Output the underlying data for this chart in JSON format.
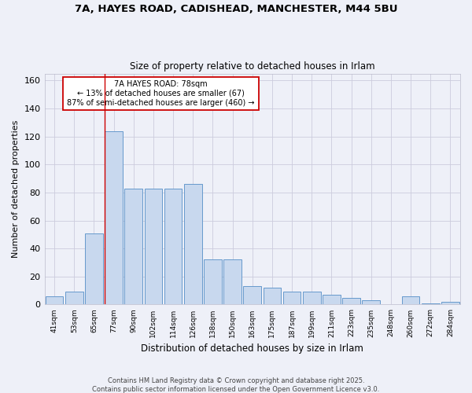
{
  "title1": "7A, HAYES ROAD, CADISHEAD, MANCHESTER, M44 5BU",
  "title2": "Size of property relative to detached houses in Irlam",
  "xlabel": "Distribution of detached houses by size in Irlam",
  "ylabel": "Number of detached properties",
  "categories": [
    "41sqm",
    "53sqm",
    "65sqm",
    "77sqm",
    "90sqm",
    "102sqm",
    "114sqm",
    "126sqm",
    "138sqm",
    "150sqm",
    "163sqm",
    "175sqm",
    "187sqm",
    "199sqm",
    "211sqm",
    "223sqm",
    "235sqm",
    "248sqm",
    "260sqm",
    "272sqm",
    "284sqm"
  ],
  "values": [
    6,
    9,
    51,
    124,
    83,
    83,
    83,
    86,
    32,
    32,
    13,
    12,
    9,
    9,
    7,
    5,
    3,
    0,
    6,
    1,
    2
  ],
  "bar_color": "#c8d8ee",
  "bar_edge_color": "#6699cc",
  "background_color": "#eef0f8",
  "grid_color": "#ccccdd",
  "annotation_box_color": "#ffffff",
  "annotation_border_color": "#cc0000",
  "red_line_index": 3,
  "annotation_text_line1": "7A HAYES ROAD: 78sqm",
  "annotation_text_line2": "← 13% of detached houses are smaller (67)",
  "annotation_text_line3": "87% of semi-detached houses are larger (460) →",
  "footer1": "Contains HM Land Registry data © Crown copyright and database right 2025.",
  "footer2": "Contains public sector information licensed under the Open Government Licence v3.0.",
  "ylim": [
    0,
    165
  ],
  "yticks": [
    0,
    20,
    40,
    60,
    80,
    100,
    120,
    140,
    160
  ]
}
